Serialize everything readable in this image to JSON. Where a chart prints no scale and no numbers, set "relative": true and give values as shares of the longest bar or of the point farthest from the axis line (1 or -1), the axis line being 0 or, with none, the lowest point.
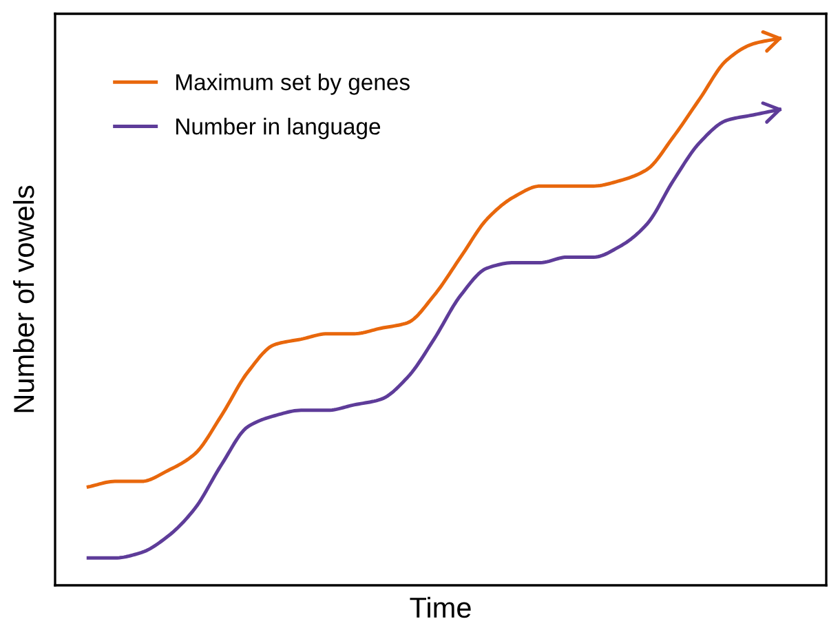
{
  "chart_data": {
    "type": "line",
    "relative": true,
    "xlabel": "Time",
    "ylabel": "Number of vowels",
    "legend": "top left",
    "marker": "none",
    "line_style": "solid",
    "categories": [
      null,
      null,
      null,
      null,
      null,
      null,
      null,
      null,
      null,
      null,
      null,
      null,
      null,
      null,
      null,
      null,
      null,
      null,
      null,
      null,
      null,
      null,
      null,
      null,
      null,
      null,
      null
    ],
    "series": [
      {
        "name": "Maximum set by genes",
        "color": "#e8670c",
        "values": [
          0.18,
          0.19,
          0.19,
          0.21,
          0.24,
          0.31,
          0.39,
          0.44,
          0.45,
          0.46,
          0.46,
          0.47,
          0.48,
          0.53,
          0.6,
          0.67,
          0.71,
          0.73,
          0.73,
          0.73,
          0.74,
          0.76,
          0.82,
          0.89,
          0.96,
          0.99,
          1.0
        ]
      },
      {
        "name": "Number in language",
        "color": "#5e3c99",
        "values": [
          0.05,
          0.05,
          0.06,
          0.09,
          0.14,
          0.22,
          0.29,
          0.31,
          0.32,
          0.32,
          0.33,
          0.34,
          0.38,
          0.45,
          0.53,
          0.58,
          0.59,
          0.59,
          0.6,
          0.6,
          0.62,
          0.66,
          0.74,
          0.81,
          0.85,
          0.86,
          0.87
        ]
      }
    ]
  }
}
